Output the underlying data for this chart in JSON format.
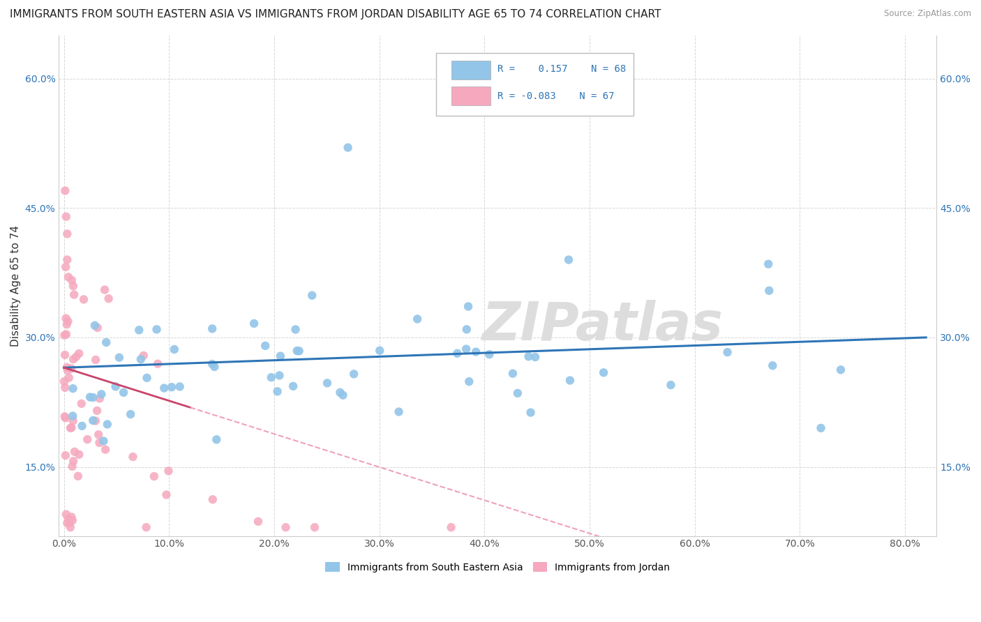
{
  "title": "IMMIGRANTS FROM SOUTH EASTERN ASIA VS IMMIGRANTS FROM JORDAN DISABILITY AGE 65 TO 74 CORRELATION CHART",
  "source": "Source: ZipAtlas.com",
  "ylabel": "Disability Age 65 to 74",
  "x_ticks": [
    0.0,
    0.1,
    0.2,
    0.3,
    0.4,
    0.5,
    0.6,
    0.7,
    0.8
  ],
  "x_tick_labels": [
    "0.0%",
    "10.0%",
    "20.0%",
    "30.0%",
    "40.0%",
    "50.0%",
    "60.0%",
    "70.0%",
    "80.0%"
  ],
  "y_ticks": [
    0.15,
    0.3,
    0.45,
    0.6
  ],
  "y_tick_labels": [
    "15.0%",
    "30.0%",
    "45.0%",
    "60.0%"
  ],
  "xlim": [
    -0.005,
    0.83
  ],
  "ylim": [
    0.07,
    0.65
  ],
  "R_blue": 0.157,
  "N_blue": 68,
  "R_pink": -0.083,
  "N_pink": 67,
  "legend_label_blue": "Immigrants from South Eastern Asia",
  "legend_label_pink": "Immigrants from Jordan",
  "blue_color": "#92C5E8",
  "pink_color": "#F5A8BE",
  "blue_line_color": "#2E75B6",
  "pink_line_color": "#C9436A",
  "pink_dash_color": "#F0A0BC",
  "watermark": "ZIPatlas",
  "grid_color": "#CCCCCC",
  "background_color": "#FFFFFF",
  "title_fontsize": 11,
  "axis_label_fontsize": 11,
  "tick_fontsize": 10,
  "watermark_color": "#DDDDDD",
  "watermark_fontsize": 55,
  "legend_R_color": "#2E75B6",
  "legend_text_color": "#333333"
}
